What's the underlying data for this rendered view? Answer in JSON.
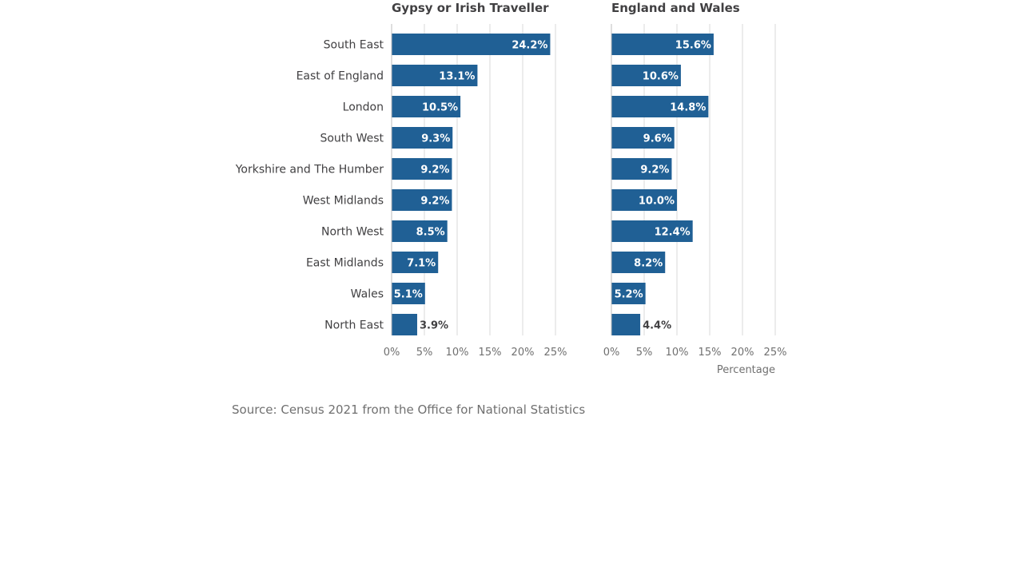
{
  "chart_data": {
    "type": "bar",
    "orientation": "horizontal",
    "categories": [
      "South East",
      "East of England",
      "London",
      "South West",
      "Yorkshire and The Humber",
      "West Midlands",
      "North West",
      "East Midlands",
      "Wales",
      "North East"
    ],
    "panels": [
      {
        "title": "Gypsy or Irish Traveller",
        "values": [
          24.2,
          13.1,
          10.5,
          9.3,
          9.2,
          9.2,
          8.5,
          7.1,
          5.1,
          3.9
        ],
        "labels": [
          "24.2%",
          "13.1%",
          "10.5%",
          "9.3%",
          "9.2%",
          "9.2%",
          "8.5%",
          "7.1%",
          "5.1%",
          "3.9%"
        ]
      },
      {
        "title": "England and Wales",
        "values": [
          15.6,
          10.6,
          14.8,
          9.6,
          9.2,
          10.0,
          12.4,
          8.2,
          5.2,
          4.4
        ],
        "labels": [
          "15.6%",
          "10.6%",
          "14.8%",
          "9.6%",
          "9.2%",
          "10.0%",
          "12.4%",
          "8.2%",
          "5.2%",
          "4.4%"
        ]
      }
    ],
    "xlim": [
      0,
      25
    ],
    "xticks": [
      0,
      5,
      10,
      15,
      20,
      25
    ],
    "xtick_labels": [
      "0%",
      "5%",
      "10%",
      "15%",
      "20%",
      "25%"
    ],
    "xlabel": "Percentage",
    "bar_color": "#206095",
    "grid": true
  },
  "source": "Source: Census 2021 from the Office for National Statistics"
}
